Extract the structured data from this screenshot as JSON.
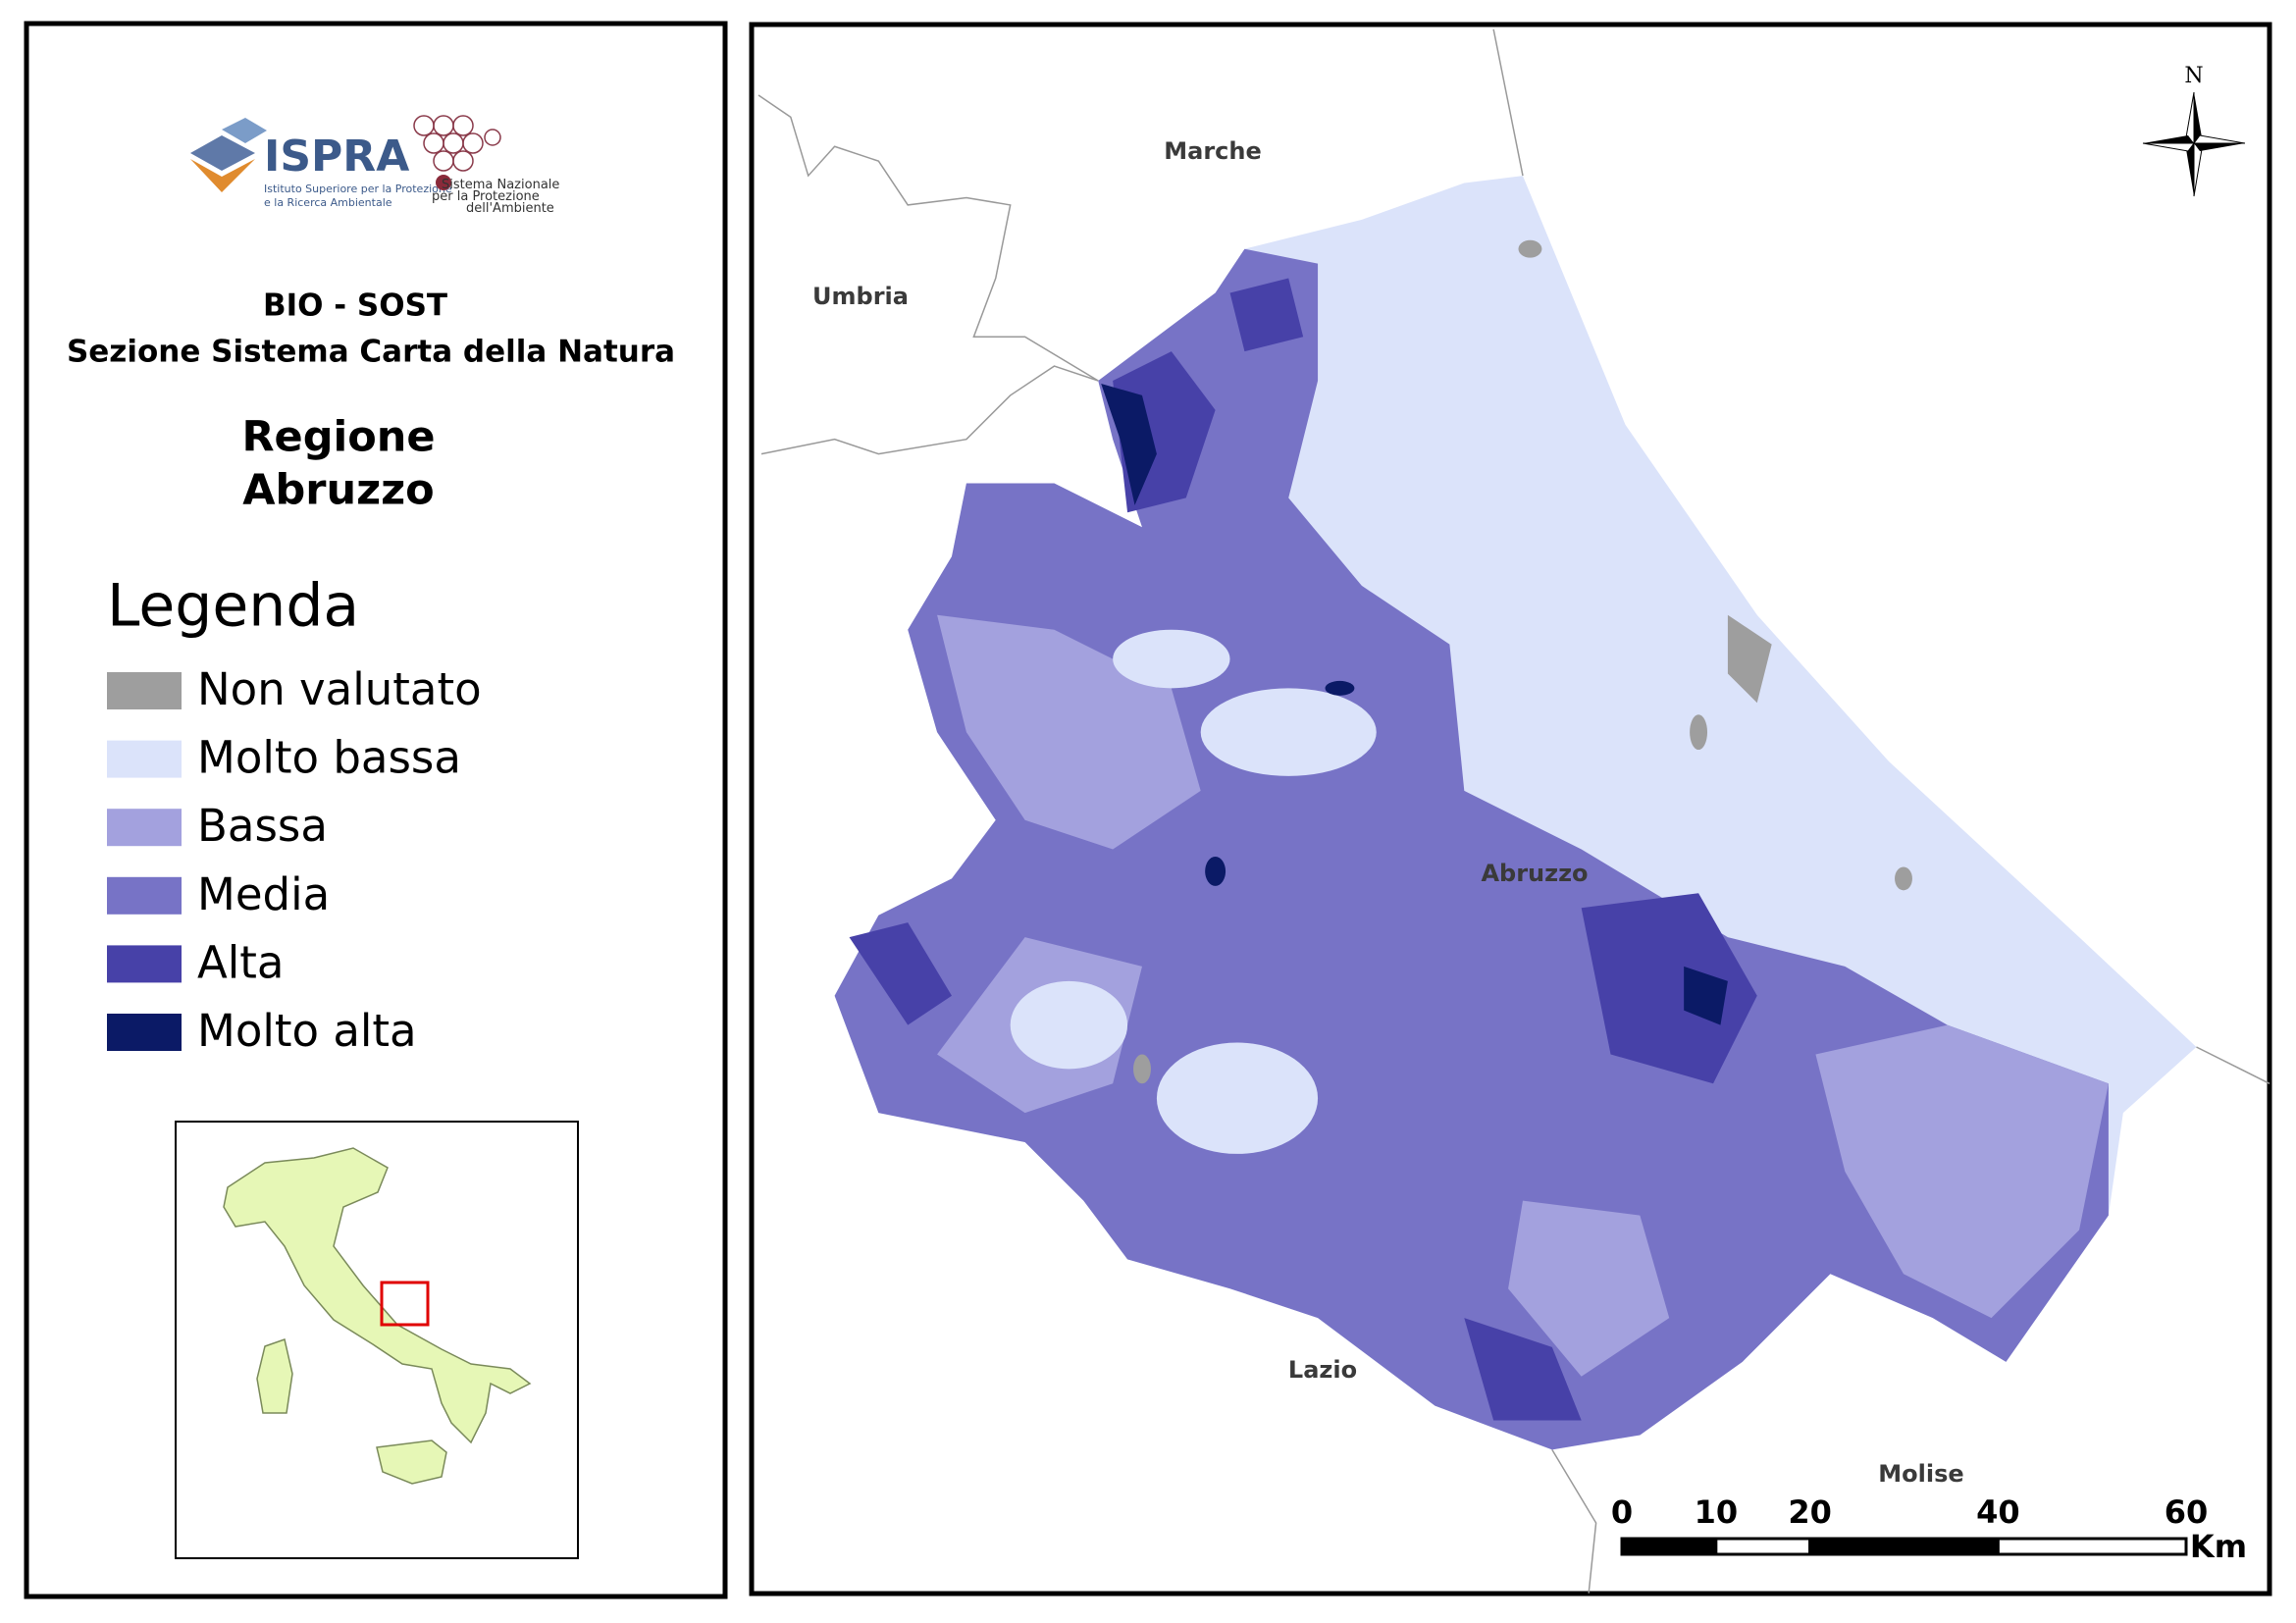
{
  "logo": {
    "name": "ISPRA",
    "subtitle": [
      "Istituto Superiore per la Protezione",
      "e la Ricerca Ambientale"
    ],
    "network": [
      "Sistema Nazionale",
      "per la Protezione",
      "dell'Ambiente"
    ]
  },
  "header": {
    "unit": "BIO - SOST",
    "section": "Sezione Sistema Carta della Natura",
    "title": [
      "Regione",
      "Abruzzo"
    ]
  },
  "legend": {
    "title": "Legenda",
    "items": [
      {
        "label": "Non valutato",
        "color": "#9e9e9e"
      },
      {
        "label": "Molto bassa",
        "color": "#dbe3fa"
      },
      {
        "label": "Bassa",
        "color": "#a3a1de"
      },
      {
        "label": "Media",
        "color": "#7773c6"
      },
      {
        "label": "Alta",
        "color": "#4741a8"
      },
      {
        "label": "Molto alta",
        "color": "#0b1a66"
      }
    ]
  },
  "map": {
    "regions": [
      "Marche",
      "Umbria",
      "Abruzzo",
      "Lazio",
      "Molise"
    ],
    "north": "N",
    "scale_bar": {
      "ticks": [
        0,
        10,
        20,
        40,
        60
      ],
      "unit": "Km"
    }
  }
}
